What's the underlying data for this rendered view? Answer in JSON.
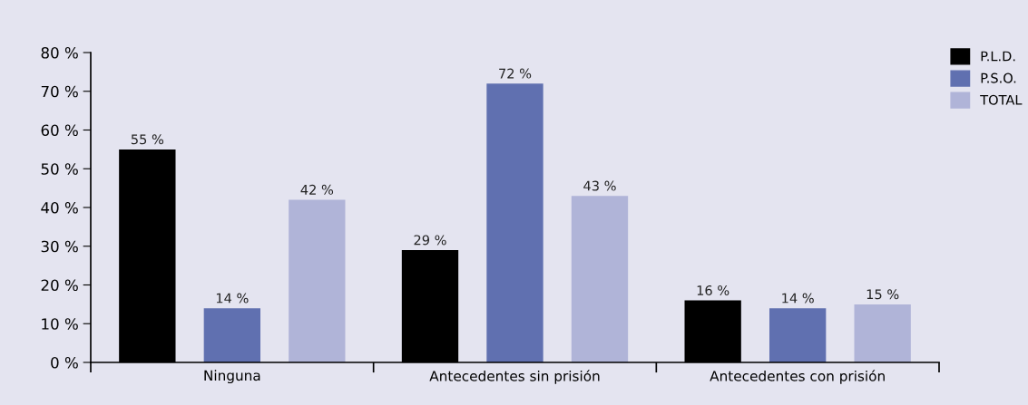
{
  "chart_data": {
    "type": "bar",
    "categories": [
      "Ninguna",
      "Antecedentes sin prisión",
      "Antecedentes con prisión"
    ],
    "series": [
      {
        "name": "P.L.D.",
        "color": "#000000",
        "values": [
          55,
          29,
          16
        ],
        "value_labels": [
          "55 %",
          "29 %",
          "16 %"
        ]
      },
      {
        "name": "P.S.O.",
        "color": "#6070b0",
        "values": [
          14,
          72,
          14
        ],
        "value_labels": [
          "14 %",
          "72 %",
          "14 %"
        ]
      },
      {
        "name": "TOTAL",
        "color": "#b0b4d8",
        "values": [
          42,
          43,
          15
        ],
        "value_labels": [
          "42 %",
          "43 %",
          "15 %"
        ]
      }
    ],
    "ylim": [
      0,
      80
    ],
    "yticks": [
      {
        "value": 0,
        "label": "0 %"
      },
      {
        "value": 10,
        "label": "10 %"
      },
      {
        "value": 20,
        "label": "20 %"
      },
      {
        "value": 30,
        "label": "30 %"
      },
      {
        "value": 40,
        "label": "40 %"
      },
      {
        "value": 50,
        "label": "50 %"
      },
      {
        "value": 60,
        "label": "60 %"
      },
      {
        "value": 70,
        "label": "70 %"
      },
      {
        "value": 80,
        "label": "80 %"
      }
    ],
    "grid": false,
    "legend": "top right"
  }
}
